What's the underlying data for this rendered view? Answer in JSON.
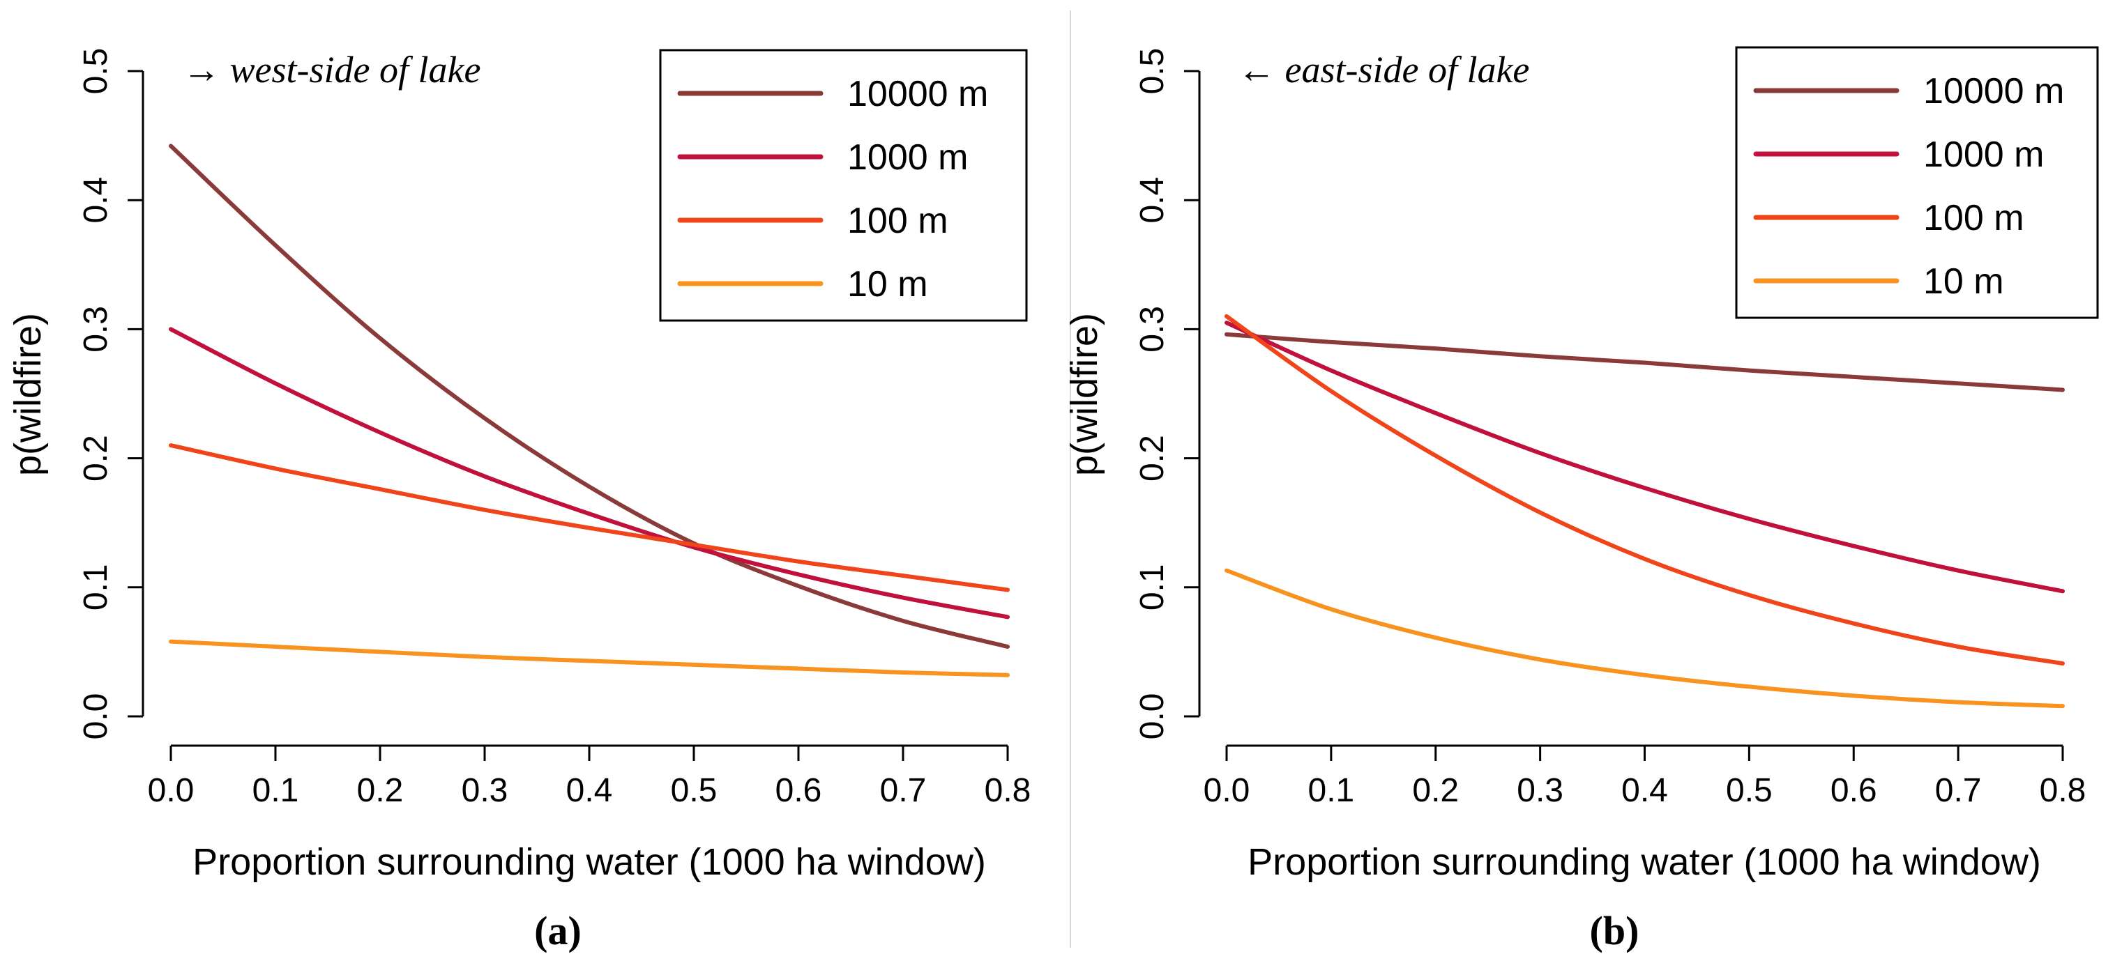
{
  "chart_data": [
    {
      "type": "line",
      "panel_label": "(a)",
      "annotation": "→ west-side of lake",
      "xlabel": "Proportion surrounding water (1000 ha window)",
      "ylabel": "p(wildfire)",
      "xlim": [
        0.0,
        0.8
      ],
      "ylim": [
        0.0,
        0.5
      ],
      "xticks": [
        "0.0",
        "0.1",
        "0.2",
        "0.3",
        "0.4",
        "0.5",
        "0.6",
        "0.7",
        "0.8"
      ],
      "yticks": [
        "0.0",
        "0.1",
        "0.2",
        "0.3",
        "0.4",
        "0.5"
      ],
      "legend_position": "top-right",
      "grid": false,
      "x": [
        0.0,
        0.1,
        0.2,
        0.3,
        0.4,
        0.5,
        0.6,
        0.7,
        0.8
      ],
      "series": [
        {
          "name": "10000 m",
          "color": "#8B3A3A",
          "values": [
            0.442,
            0.365,
            0.293,
            0.231,
            0.178,
            0.134,
            0.101,
            0.074,
            0.054
          ]
        },
        {
          "name": "1000 m",
          "color": "#C0103C",
          "values": [
            0.3,
            0.258,
            0.22,
            0.186,
            0.157,
            0.131,
            0.11,
            0.092,
            0.077
          ]
        },
        {
          "name": "100 m",
          "color": "#F0441A",
          "values": [
            0.21,
            0.192,
            0.176,
            0.16,
            0.146,
            0.133,
            0.12,
            0.109,
            0.098
          ]
        },
        {
          "name": "10 m",
          "color": "#F7931E",
          "values": [
            0.058,
            0.054,
            0.05,
            0.046,
            0.043,
            0.04,
            0.037,
            0.034,
            0.032
          ]
        }
      ]
    },
    {
      "type": "line",
      "panel_label": "(b)",
      "annotation": "← east-side of lake",
      "xlabel": "Proportion surrounding water (1000 ha window)",
      "ylabel": "p(wildfire)",
      "xlim": [
        0.0,
        0.8
      ],
      "ylim": [
        0.0,
        0.5
      ],
      "xticks": [
        "0.0",
        "0.1",
        "0.2",
        "0.3",
        "0.4",
        "0.5",
        "0.6",
        "0.7",
        "0.8"
      ],
      "yticks": [
        "0.0",
        "0.1",
        "0.2",
        "0.3",
        "0.4",
        "0.5"
      ],
      "legend_position": "top-right",
      "grid": false,
      "x": [
        0.0,
        0.1,
        0.2,
        0.3,
        0.4,
        0.5,
        0.6,
        0.7,
        0.8
      ],
      "series": [
        {
          "name": "10000 m",
          "color": "#8B3A3A",
          "values": [
            0.296,
            0.29,
            0.285,
            0.279,
            0.274,
            0.268,
            0.263,
            0.258,
            0.253
          ]
        },
        {
          "name": "1000 m",
          "color": "#C0103C",
          "values": [
            0.305,
            0.268,
            0.235,
            0.204,
            0.177,
            0.153,
            0.132,
            0.113,
            0.097
          ]
        },
        {
          "name": "100 m",
          "color": "#F0441A",
          "values": [
            0.31,
            0.252,
            0.202,
            0.158,
            0.122,
            0.094,
            0.072,
            0.054,
            0.041
          ]
        },
        {
          "name": "10 m",
          "color": "#F7931E",
          "values": [
            0.113,
            0.083,
            0.061,
            0.044,
            0.032,
            0.023,
            0.016,
            0.011,
            0.008
          ]
        }
      ]
    }
  ]
}
